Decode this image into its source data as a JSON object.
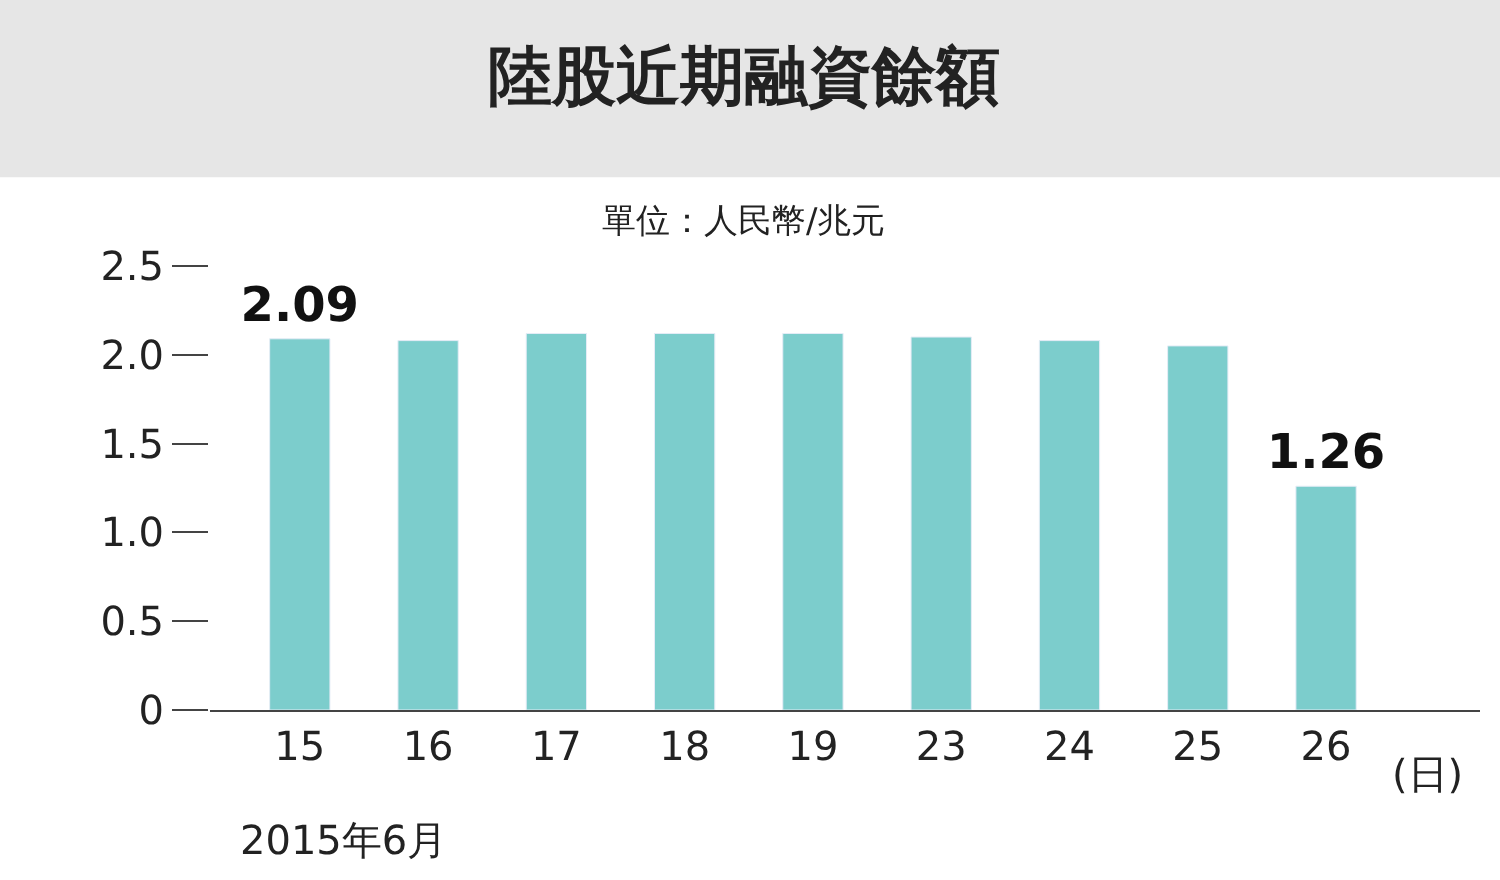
{
  "chart_data": {
    "type": "bar",
    "title": "陸股近期融資餘額",
    "subtitle": "單位：人民幣/兆元",
    "xlabel": "(日)",
    "categories": [
      "15",
      "16",
      "17",
      "18",
      "19",
      "23",
      "24",
      "25",
      "26"
    ],
    "values": [
      2.09,
      2.08,
      2.12,
      2.12,
      2.12,
      2.1,
      2.08,
      2.05,
      1.26
    ],
    "value_labels": [
      "2.09",
      null,
      null,
      null,
      null,
      null,
      null,
      null,
      "1.26"
    ],
    "color": "#7ccdcc",
    "ylim": [
      0,
      2.5
    ],
    "yticks": [
      0,
      0.5,
      {
        "value": 1,
        "label": "1.0"
      },
      1.5,
      {
        "value": 2,
        "label": "2.0"
      },
      2.5
    ],
    "annotations": [
      "2015年6月"
    ]
  }
}
